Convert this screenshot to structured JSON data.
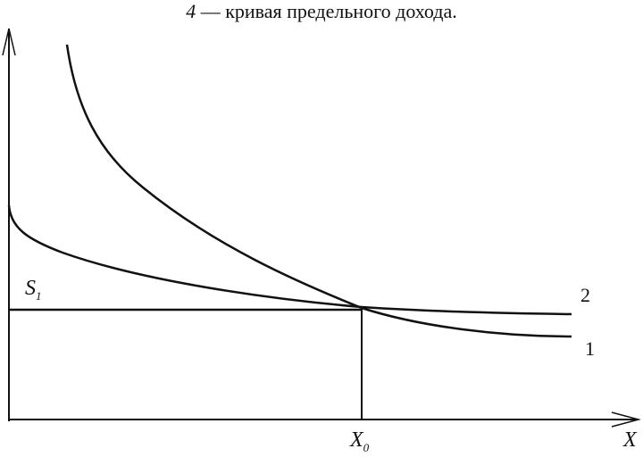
{
  "caption": {
    "number": "4",
    "text": "— кривая предельного дохода."
  },
  "labels": {
    "s": "S",
    "s_sub": "1",
    "x0": "X",
    "x0_sub": "0",
    "x": "X",
    "curve1": "1",
    "curve2": "2"
  }
}
